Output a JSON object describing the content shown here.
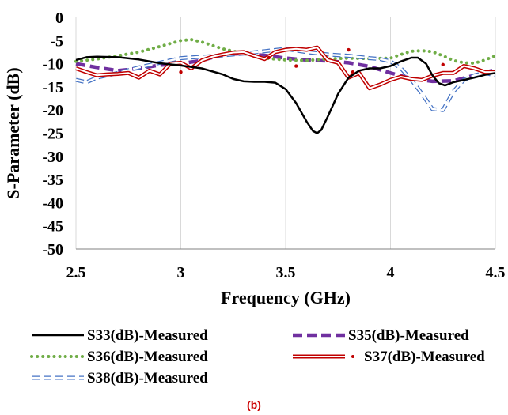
{
  "chart_data": {
    "type": "line",
    "xlabel": "Frequency (GHz)",
    "ylabel": "S-Parameter (dB)",
    "xlim": [
      2.5,
      4.5
    ],
    "ylim": [
      -50,
      0
    ],
    "x_ticks": [
      "2.5",
      "3",
      "3.5",
      "4",
      "4.5"
    ],
    "y_ticks": [
      "0",
      "-5",
      "-10",
      "-15",
      "-20",
      "-25",
      "-30",
      "-35",
      "-40",
      "-45",
      "-50"
    ],
    "grid": "vertical",
    "legend_placement": "bottom",
    "caption": "(b)",
    "series": [
      {
        "name": "S33(dB)-Measured",
        "style": "solid",
        "color": "#000000",
        "x": [
          2.5,
          2.55,
          2.6,
          2.7,
          2.8,
          2.9,
          3.0,
          3.1,
          3.2,
          3.25,
          3.3,
          3.35,
          3.4,
          3.45,
          3.5,
          3.55,
          3.6,
          3.63,
          3.65,
          3.67,
          3.7,
          3.75,
          3.8,
          3.85,
          3.9,
          3.95,
          4.0,
          4.05,
          4.1,
          4.13,
          4.17,
          4.2,
          4.23,
          4.26,
          4.3,
          4.35,
          4.4,
          4.45,
          4.5
        ],
        "y": [
          -9.2,
          -8.6,
          -8.5,
          -8.6,
          -9.1,
          -9.9,
          -10.4,
          -11.0,
          -12.3,
          -13.3,
          -13.8,
          -13.9,
          -13.9,
          -14.1,
          -15.5,
          -18.5,
          -22.5,
          -24.5,
          -25.0,
          -24.3,
          -21.5,
          -16.5,
          -13.0,
          -11.5,
          -11.0,
          -11.0,
          -10.5,
          -9.5,
          -8.7,
          -8.7,
          -10.0,
          -12.5,
          -14.2,
          -14.7,
          -14.0,
          -13.5,
          -13.0,
          -12.4,
          -12.0
        ]
      },
      {
        "name": "S35(dB)-Measured",
        "style": "dashed-thick",
        "color": "#7030a0",
        "x": [
          2.5,
          2.6,
          2.7,
          2.8,
          2.9,
          3.0,
          3.1,
          3.2,
          3.3,
          3.4,
          3.5,
          3.6,
          3.7,
          3.8,
          3.9,
          4.0,
          4.1,
          4.2,
          4.3,
          4.4,
          4.5
        ],
        "y": [
          -10.0,
          -10.8,
          -11.5,
          -11.0,
          -10.3,
          -10.0,
          -9.3,
          -8.0,
          -7.8,
          -8.2,
          -8.8,
          -9.2,
          -9.4,
          -9.8,
          -10.6,
          -12.0,
          -13.2,
          -13.8,
          -13.7,
          -12.5,
          -11.3
        ]
      },
      {
        "name": "S36(dB)-Measured",
        "style": "dotted",
        "color": "#70ad47",
        "x": [
          2.5,
          2.6,
          2.7,
          2.8,
          2.9,
          3.0,
          3.05,
          3.1,
          3.2,
          3.3,
          3.4,
          3.5,
          3.6,
          3.7,
          3.8,
          3.9,
          4.0,
          4.05,
          4.1,
          4.15,
          4.2,
          4.25,
          4.3,
          4.35,
          4.4,
          4.45,
          4.5
        ],
        "y": [
          -9.5,
          -9.0,
          -8.3,
          -7.5,
          -6.3,
          -5.0,
          -4.8,
          -5.3,
          -6.8,
          -7.8,
          -8.8,
          -9.2,
          -9.3,
          -9.0,
          -8.8,
          -8.9,
          -8.8,
          -8.0,
          -7.3,
          -7.2,
          -7.4,
          -8.3,
          -9.3,
          -9.8,
          -9.9,
          -9.2,
          -8.3
        ]
      },
      {
        "name": "S37(dB)-Measured",
        "style": "double-line-with-dots",
        "color": "#c00000",
        "x": [
          2.5,
          2.55,
          2.6,
          2.65,
          2.7,
          2.75,
          2.8,
          2.85,
          2.9,
          2.95,
          3.0,
          3.05,
          3.1,
          3.15,
          3.2,
          3.25,
          3.3,
          3.35,
          3.4,
          3.45,
          3.5,
          3.55,
          3.6,
          3.65,
          3.7,
          3.75,
          3.8,
          3.85,
          3.9,
          3.95,
          4.0,
          4.05,
          4.1,
          4.15,
          4.2,
          4.25,
          4.3,
          4.35,
          4.4,
          4.45,
          4.5
        ],
        "y": [
          -11.0,
          -11.8,
          -12.5,
          -12.3,
          -12.2,
          -12.0,
          -13.0,
          -11.5,
          -12.3,
          -10.0,
          -9.8,
          -11.0,
          -9.3,
          -8.5,
          -8.0,
          -7.6,
          -7.5,
          -8.3,
          -9.0,
          -7.5,
          -7.0,
          -6.8,
          -7.0,
          -6.5,
          -9.2,
          -9.8,
          -13.0,
          -12.0,
          -15.3,
          -14.5,
          -13.5,
          -12.8,
          -13.3,
          -13.5,
          -12.6,
          -12.0,
          -12.0,
          -10.5,
          -11.0,
          -11.8,
          -11.8
        ]
      },
      {
        "name": "S38(dB)-Measured",
        "style": "double-dashed",
        "color": "#4472c4",
        "x": [
          2.5,
          2.55,
          2.6,
          2.7,
          2.8,
          2.9,
          3.0,
          3.1,
          3.2,
          3.3,
          3.4,
          3.5,
          3.6,
          3.7,
          3.8,
          3.9,
          3.95,
          4.0,
          4.05,
          4.1,
          4.15,
          4.2,
          4.25,
          4.3,
          4.35,
          4.4,
          4.45,
          4.5
        ],
        "y": [
          -13.5,
          -14.0,
          -13.0,
          -12.0,
          -10.8,
          -9.8,
          -8.8,
          -8.5,
          -8.2,
          -7.8,
          -7.3,
          -6.8,
          -7.5,
          -8.0,
          -8.3,
          -8.8,
          -9.0,
          -9.5,
          -11.0,
          -13.5,
          -16.5,
          -19.8,
          -20.0,
          -16.0,
          -13.5,
          -12.5,
          -12.0,
          -12.5
        ]
      }
    ]
  }
}
